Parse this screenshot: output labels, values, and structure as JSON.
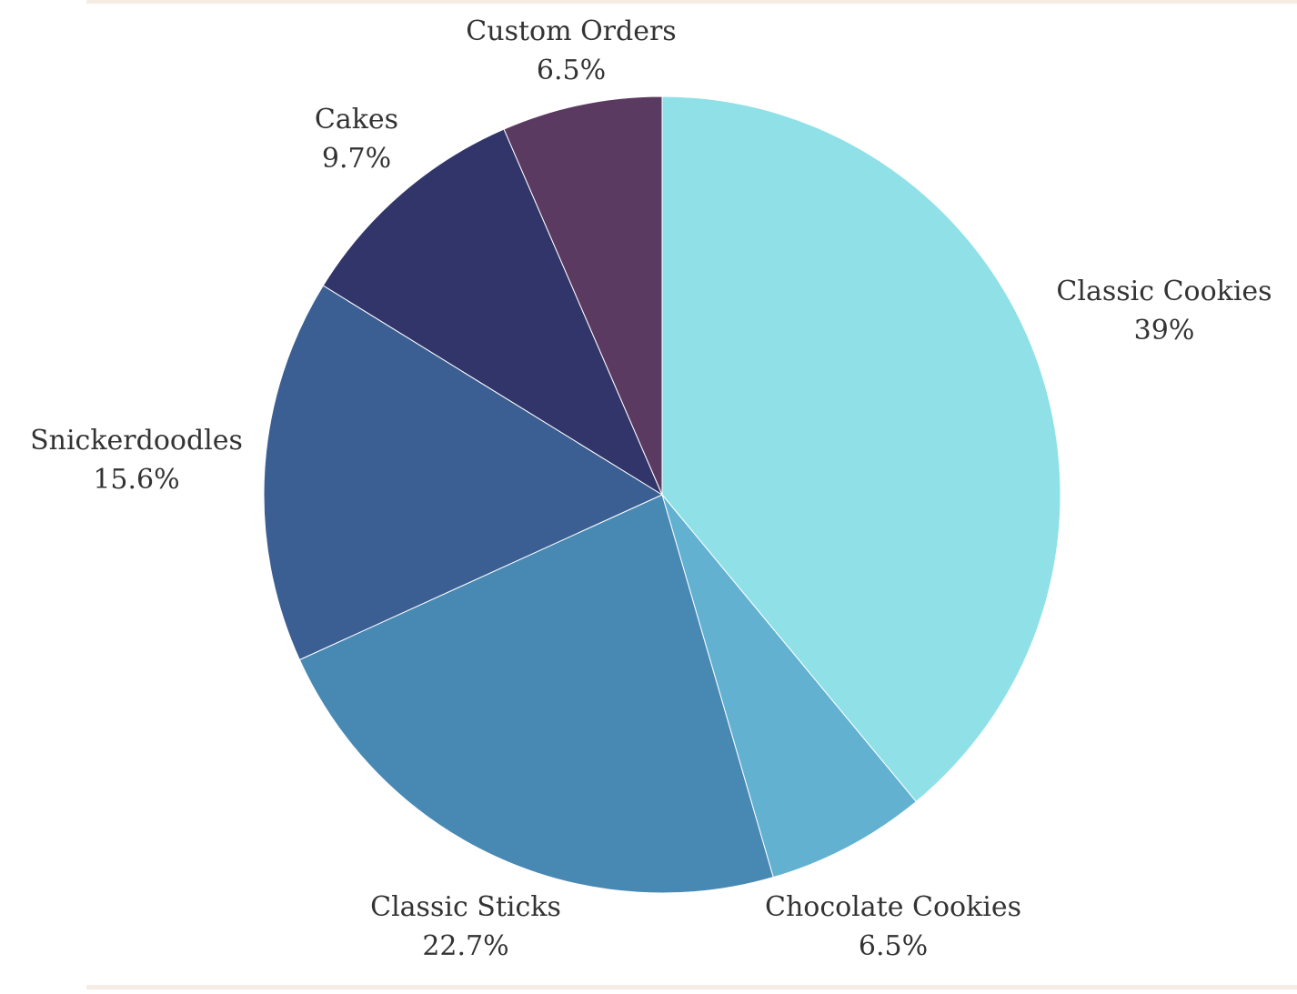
{
  "chart_data": {
    "type": "pie",
    "title": "",
    "slices": [
      {
        "label": "Classic Cookies",
        "value": 39,
        "value_label": "39%",
        "color": "#8fe1e7"
      },
      {
        "label": "Chocolate Cookies",
        "value": 6.5,
        "value_label": "6.5%",
        "color": "#62b1d0"
      },
      {
        "label": "Classic Sticks",
        "value": 22.7,
        "value_label": "22.7%",
        "color": "#4889b4"
      },
      {
        "label": "Snickerdoodles",
        "value": 15.6,
        "value_label": "15.6%",
        "color": "#3b5e93"
      },
      {
        "label": "Cakes",
        "value": 9.7,
        "value_label": "9.7%",
        "color": "#32356a"
      },
      {
        "label": "Custom Orders",
        "value": 6.5,
        "value_label": "6.5%",
        "color": "#5b3a61"
      }
    ],
    "start_angle_deg": 0,
    "direction": "clockwise",
    "legend": "none"
  }
}
